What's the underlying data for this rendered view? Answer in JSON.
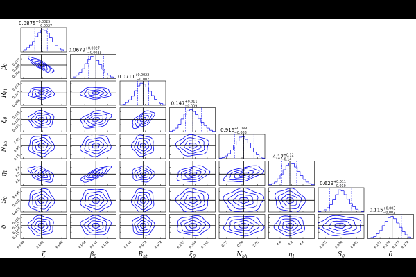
{
  "chart_data": {
    "type": "corner",
    "color": "#0000ee",
    "truth_color": "#000000",
    "params": [
      {
        "label": {
          "main": "ζ",
          "sub": null
        },
        "median": 0.0875,
        "plus": 0.0025,
        "minus": 0.0027,
        "error_labels": [
          "+0.0025",
          "−0.0027"
        ],
        "lim": [
          0.079,
          0.098
        ],
        "ticks": [
          {
            "value": 0.08,
            "label": "0.080"
          },
          0.088,
          0.096
        ],
        "hist": [
          2,
          4,
          8,
          13,
          20,
          29,
          37,
          42,
          41,
          36,
          27,
          19,
          12,
          7,
          4,
          2
        ],
        "correlations": []
      },
      {
        "label": {
          "main": "β",
          "sub": "0"
        },
        "median": 0.0679,
        "plus": 0.0027,
        "minus": 0.0025,
        "error_labels": [
          "+0.0027",
          "−0.0025"
        ],
        "lim": [
          0.059,
          0.075
        ],
        "ticks": [
          0.064,
          0.068,
          0.072
        ],
        "hist": [
          1,
          3,
          6,
          11,
          18,
          27,
          35,
          40,
          39,
          33,
          25,
          17,
          10,
          6,
          3,
          1
        ],
        "correlations": [
          -0.85
        ]
      },
      {
        "label": {
          "main": "R",
          "sub": "ht"
        },
        "median": 0.0711,
        "plus": 0.0022,
        "minus": 0.0021,
        "error_labels": [
          "+0.0022",
          "−0.0021"
        ],
        "lim": [
          0.062,
          0.08
        ],
        "ticks": [
          0.066,
          0.072,
          0.078
        ],
        "hist": [
          1,
          2,
          5,
          10,
          17,
          27,
          36,
          41,
          39,
          34,
          26,
          18,
          11,
          6,
          3,
          1
        ],
        "correlations": [
          0.0,
          0.0
        ]
      },
      {
        "label": {
          "main": "ξ",
          "sub": "0"
        },
        "median": 0.147,
        "plus": 0.011,
        "minus": 0.009,
        "error_labels": [
          "+0.011",
          "−0.009"
        ],
        "lim": [
          0.118,
          0.175
        ],
        "ticks": [
          0.135,
          {
            "value": 0.15,
            "label": "0.150"
          },
          0.165
        ],
        "hist": [
          1,
          3,
          7,
          14,
          24,
          33,
          39,
          41,
          38,
          32,
          25,
          18,
          12,
          7,
          3,
          1
        ],
        "correlations": [
          0.0,
          0.3,
          0.6
        ]
      },
      {
        "label": {
          "main": "N",
          "sub": "bh"
        },
        "median": 0.916,
        "plus": 0.099,
        "minus": 0.088,
        "error_labels": [
          "+0.099",
          "−0.088"
        ],
        "lim": [
          0.68,
          1.12
        ],
        "ticks": [
          0.75,
          {
            "value": 0.9,
            "label": "0.90"
          },
          1.05
        ],
        "hist": [
          1,
          2,
          5,
          9,
          16,
          25,
          33,
          40,
          41,
          36,
          29,
          20,
          12,
          7,
          3,
          1
        ],
        "correlations": [
          0.0,
          0.1,
          0.0,
          0.0
        ]
      },
      {
        "label": {
          "main": "η",
          "sub": "1"
        },
        "median": 4.17,
        "plus": 0.12,
        "minus": 0.14,
        "error_labels": [
          "+0.12",
          "−0.14"
        ],
        "lim": [
          3.8,
          4.6
        ],
        "ticks": [
          {
            "value": 4.0,
            "label": "4.0"
          },
          4.2,
          4.4
        ],
        "hist": [
          1,
          3,
          6,
          12,
          20,
          29,
          37,
          41,
          40,
          34,
          26,
          18,
          11,
          6,
          3,
          1
        ],
        "correlations": [
          -0.5,
          0.8,
          0.0,
          0.3,
          0.5
        ]
      },
      {
        "label": {
          "main": "S",
          "sub": "0"
        },
        "median": 0.629,
        "plus": 0.011,
        "minus": 0.01,
        "error_labels": [
          "+0.011",
          "−0.010"
        ],
        "lim": [
          0.608,
          0.652
        ],
        "ticks": [
          0.615,
          {
            "value": 0.63,
            "label": "0.630"
          },
          0.645
        ],
        "hist": [
          1,
          2,
          4,
          8,
          14,
          23,
          33,
          42,
          40,
          33,
          24,
          16,
          10,
          5,
          2,
          1
        ],
        "correlations": [
          0.0,
          0.0,
          0.0,
          0.0,
          0.0,
          -0.1
        ]
      },
      {
        "label": {
          "main": "δ",
          "sub": null
        },
        "median": 0.115,
        "plus": 0.003,
        "minus": 0.003,
        "error_labels": [
          "+0.003",
          "−0.003"
        ],
        "lim": [
          0.107,
          0.122
        ],
        "ticks": [
          0.111,
          0.114,
          0.117,
          {
            "value": 0.12,
            "label": "0.120"
          }
        ],
        "hist": [
          1,
          2,
          4,
          9,
          15,
          24,
          32,
          39,
          41,
          37,
          29,
          21,
          13,
          7,
          3,
          1
        ],
        "correlations": [
          0.0,
          0.0,
          0.0,
          0.0,
          0.0,
          0.0,
          0.0
        ]
      }
    ]
  }
}
